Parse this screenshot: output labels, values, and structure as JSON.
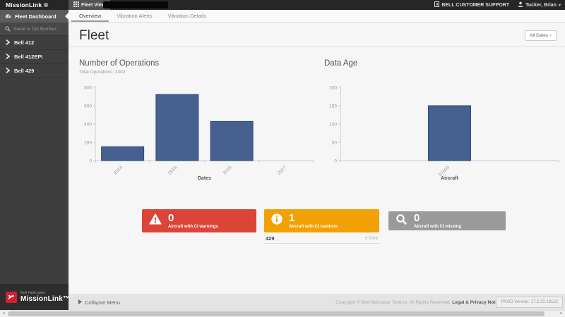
{
  "top_bar": {
    "brand": "MissionLink ®",
    "fleet_view_label": "Fleet View",
    "fleet_view_icon": "grid-icon",
    "support_label": "BELL CUSTOMER SUPPORT",
    "support_icon": "building-icon",
    "user_label": "Tucker, Brian",
    "user_icon": "person-icon",
    "user_caret": "▾"
  },
  "sidebar": {
    "dashboard_label": "Fleet Dashboard",
    "dashboard_icon": "dashboard-gauge-icon",
    "search_placeholder": "Serial or Tail Number...",
    "search_icon": "search-icon",
    "items": [
      {
        "label": "Bell 412"
      },
      {
        "label": "Bell 412EPI"
      },
      {
        "label": "Bell 429"
      }
    ],
    "logo": {
      "icon": "bell-logo",
      "top": "Bell Helicopter",
      "bottom": "MissionLink™"
    }
  },
  "tabs": [
    {
      "label": "Overview",
      "active": true
    },
    {
      "label": "Vibration Alerts",
      "active": false
    },
    {
      "label": "Vibration Details",
      "active": false
    }
  ],
  "page": {
    "title": "Fleet",
    "date_filter_label": "All Dates",
    "date_filter_caret": "▾"
  },
  "chart_data": [
    {
      "type": "bar",
      "title": "Number of Operations",
      "subtitle": "Total Operations: 1302",
      "categories": [
        "2014",
        "2015",
        "2016",
        "2017"
      ],
      "values": [
        152,
        722,
        428,
        0
      ],
      "xlabel": "Dates",
      "ylim": [
        0,
        800
      ],
      "yticks": [
        0,
        200,
        400,
        600,
        800
      ],
      "bar_color": "#46618f",
      "bar_border": "#2d4a7a",
      "legend": "none",
      "grid": "off"
    },
    {
      "type": "bar",
      "title": "Data Age",
      "subtitle": "",
      "categories": [
        "57009"
      ],
      "values": [
        150
      ],
      "xlabel": "Aircraft",
      "ylim": [
        0,
        200
      ],
      "yticks": [
        0,
        50,
        100,
        150,
        200
      ],
      "bar_color": "#46618f",
      "bar_border": "#2d4a7a",
      "legend": "none",
      "grid": "off"
    }
  ],
  "alert_cards": [
    {
      "count": "0",
      "label": "Aircraft with CI warnings",
      "color": "#dd4438",
      "icon": "warning-triangle-icon"
    },
    {
      "count": "1",
      "label": "Aircraft with CI cautions",
      "color": "#f2a104",
      "icon": "info-circle-icon"
    },
    {
      "count": "0",
      "label": "Aircraft with CI missing",
      "color": "#9a9a9a",
      "icon": "search-icon"
    }
  ],
  "caution_detail": {
    "model": "429",
    "tail": "57009"
  },
  "footer": {
    "collapse_label": "Collapse Menu",
    "collapse_icon": "play-arrow-icon",
    "copyright": "Copyright © Bell Helicopter Textron. All Rights Reserved.",
    "legal_link": "Legal & Privacy Notices",
    "version": "PROD Version: 17.2.23.19152"
  },
  "colors": {
    "topbar": "#262626",
    "sidebar": "#3e3e3e",
    "warning_red": "#dd4438",
    "caution_orange": "#f2a104",
    "missing_gray": "#9a9a9a",
    "bar_blue": "#46618f",
    "bell_red": "#d0222e"
  }
}
